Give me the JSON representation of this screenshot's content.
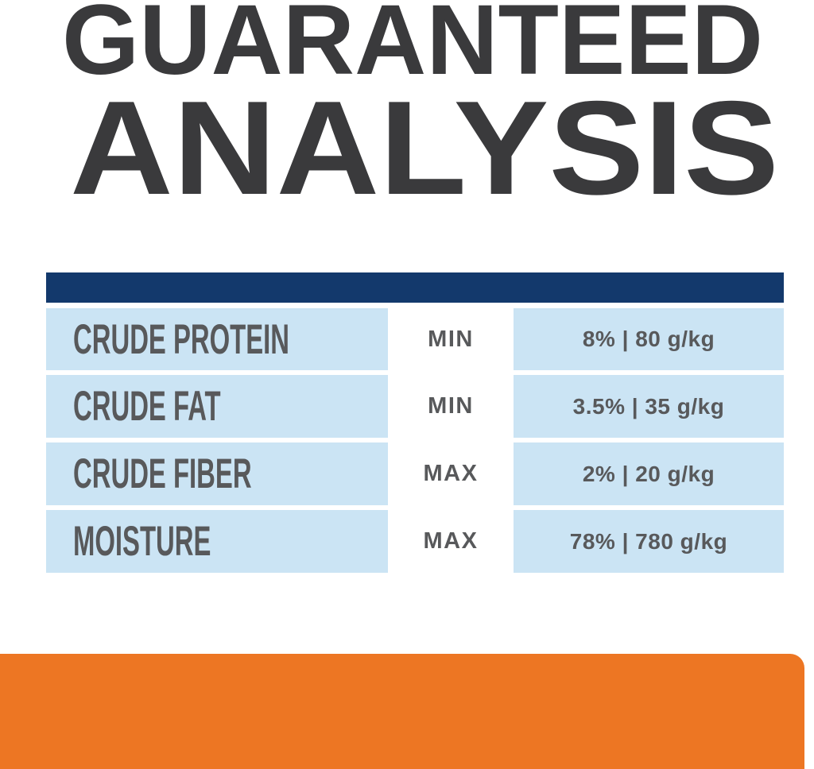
{
  "title": {
    "line1": "GUARANTEED",
    "line2": "ANALYSIS",
    "color": "#3A3A3C"
  },
  "table": {
    "header_bar_color": "#13396C",
    "row_bg_color": "#CBE4F4",
    "text_color": "#58595B",
    "rows": [
      {
        "nutrient": "CRUDE PROTEIN",
        "limit": "MIN",
        "value": "8% | 80 g/kg"
      },
      {
        "nutrient": "CRUDE FAT",
        "limit": "MIN",
        "value": "3.5% | 35 g/kg"
      },
      {
        "nutrient": "CRUDE FIBER",
        "limit": "MAX",
        "value": "2% | 20 g/kg"
      },
      {
        "nutrient": "MOISTURE",
        "limit": "MAX",
        "value": "78% | 780 g/kg"
      }
    ]
  },
  "footer": {
    "bar_color": "#ED7623"
  }
}
